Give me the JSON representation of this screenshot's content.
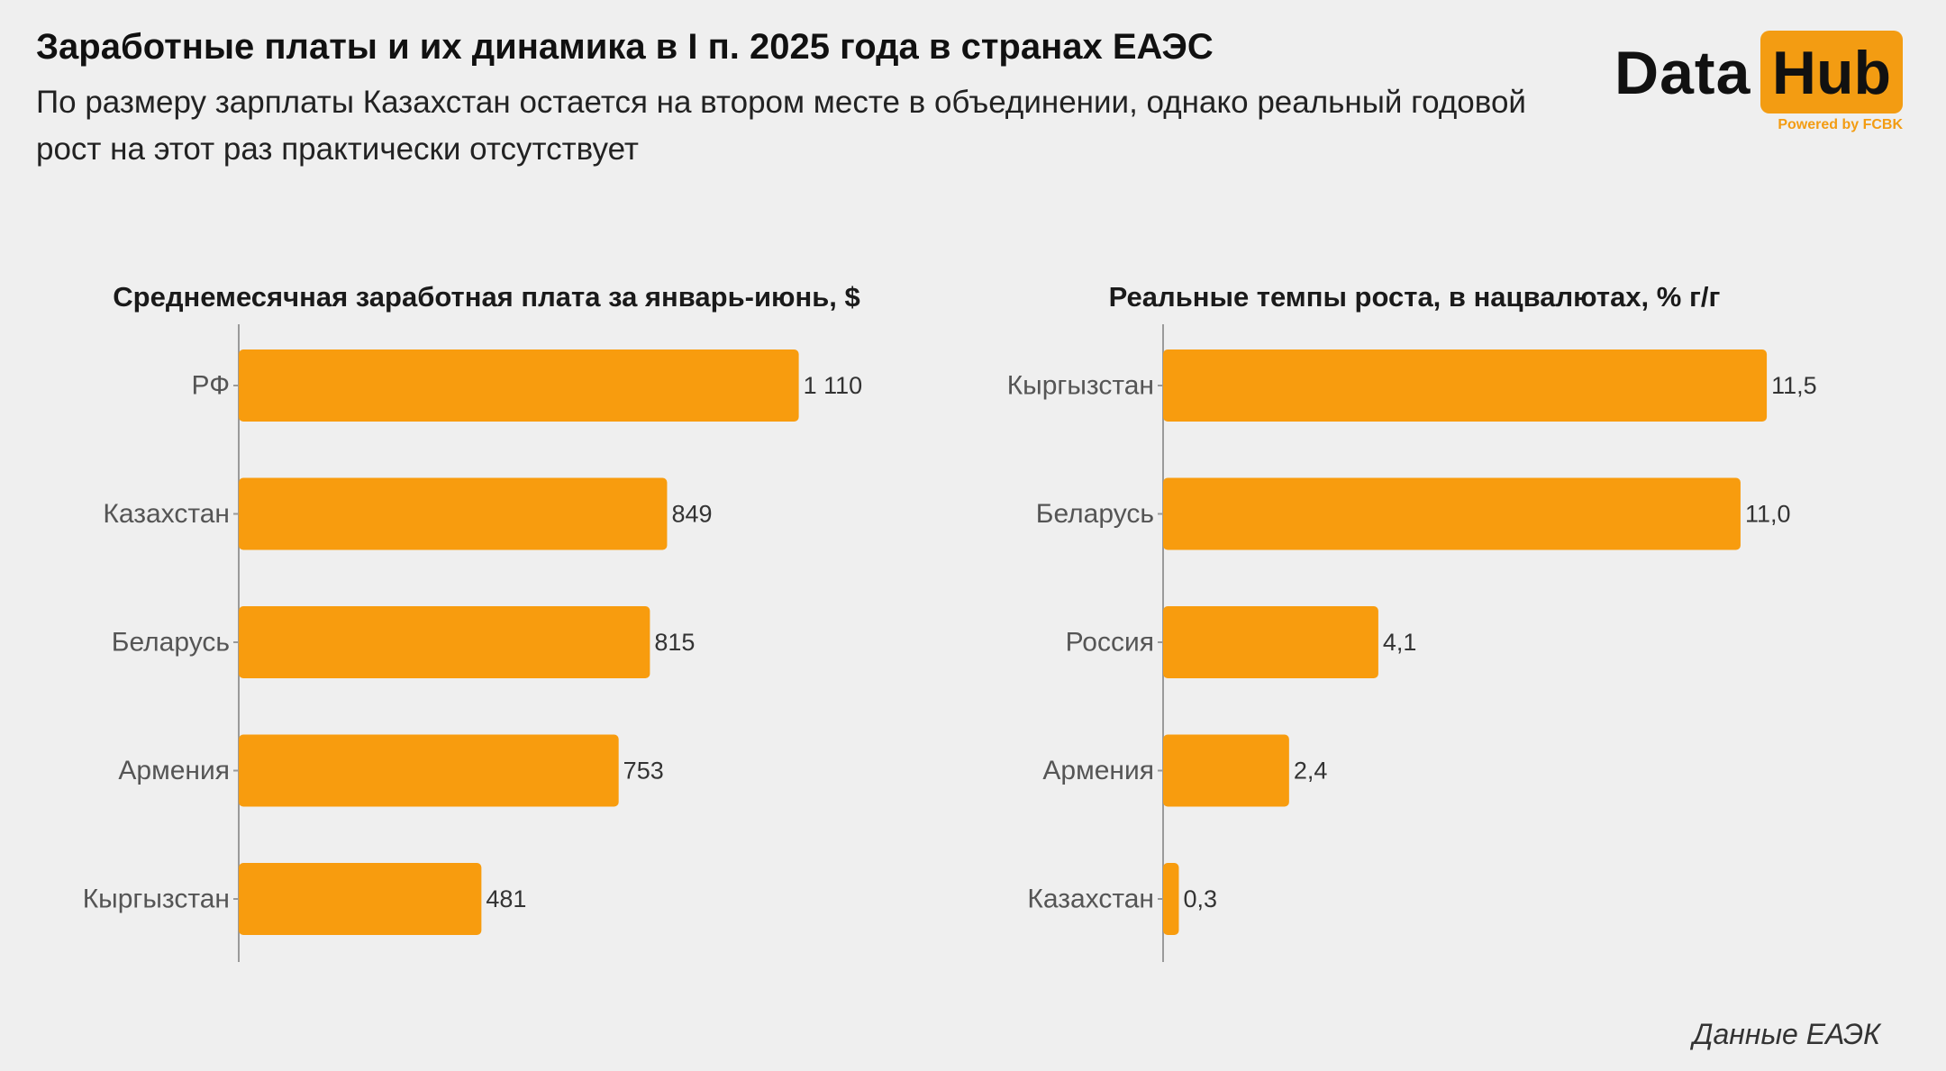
{
  "header": {
    "title": "Заработные платы и их динамика в I п. 2025 года в странах ЕАЭС",
    "subtitle": "По размеру зарплаты Казахстан остается на втором месте в объединении, однако реальный годовой рост на этот раз практически отсутствует"
  },
  "logo": {
    "word1": "Data",
    "word2": "Hub",
    "tagline": "Powered by FCBK"
  },
  "source": "Данные ЕАЭК",
  "colors": {
    "bar": "#f89c0e",
    "axis": "#9a9a9a",
    "background": "#efefef",
    "label": "#555555",
    "value": "#333333"
  },
  "chart_data": [
    {
      "type": "bar",
      "orientation": "horizontal",
      "title": "Среднемесячная заработная плата за январь-июнь, $",
      "categories": [
        "РФ",
        "Казахстан",
        "Беларусь",
        "Армения",
        "Кыргызстан"
      ],
      "values": [
        1110,
        849,
        815,
        753,
        481
      ],
      "value_labels": [
        "1 110",
        "849",
        "815",
        "753",
        "481"
      ],
      "xlim": [
        0,
        1250
      ],
      "grid": false,
      "legend": "none"
    },
    {
      "type": "bar",
      "orientation": "horizontal",
      "title": "Реальные темпы роста, в нацвалютах, % г/г",
      "categories": [
        "Кыргызстан",
        "Беларусь",
        "Россия",
        "Армения",
        "Казахстан"
      ],
      "values": [
        11.5,
        11.0,
        4.1,
        2.4,
        0.3
      ],
      "value_labels": [
        "11,5",
        "11,0",
        "4,1",
        "2,4",
        "0,3"
      ],
      "xlim": [
        0,
        12.7
      ],
      "grid": false,
      "legend": "none"
    }
  ]
}
